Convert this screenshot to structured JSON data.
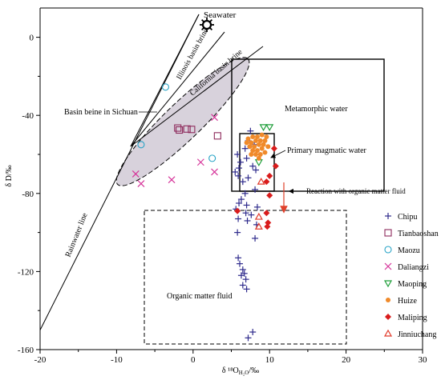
{
  "chart_data": {
    "type": "scatter",
    "xlabel": "δ ¹⁸O",
    "xlabel_sub": "H₂O",
    "xlabel_unit": "/‰",
    "ylabel": "δ D/‰",
    "xlim": [
      -20,
      30
    ],
    "ylim": [
      -160,
      15
    ],
    "x_ticks": [
      -20,
      -10,
      0,
      10,
      20,
      30
    ],
    "y_ticks": [
      0,
      -40,
      -80,
      -120,
      -160
    ],
    "grid": false,
    "legend_position": "right",
    "annotations": {
      "seawater": "Seawater",
      "basin_sichuan": "Basin beine in Sichuan",
      "illinois": "Illinois basin brine",
      "california": "California basin brine",
      "rainwater": "Rainwater line",
      "metamorphic": "Metamorphic water",
      "primary_magmatic": "Primary magmatic water",
      "reaction": "Reaction with organic matter fluid",
      "organic": "Organic matter fluid"
    },
    "series": [
      {
        "name": "Chipu",
        "marker": "plus",
        "color": "#2e2a8c",
        "points": [
          [
            7.5,
            -48
          ],
          [
            7.2,
            -53
          ],
          [
            8.0,
            -55
          ],
          [
            6.8,
            -57
          ],
          [
            5.8,
            -60
          ],
          [
            7.0,
            -62
          ],
          [
            6.2,
            -64
          ],
          [
            7.8,
            -66
          ],
          [
            6.0,
            -67
          ],
          [
            8.2,
            -68
          ],
          [
            5.5,
            -69
          ],
          [
            5.9,
            -71
          ],
          [
            7.2,
            -72
          ],
          [
            6.5,
            -74
          ],
          [
            8.1,
            -78
          ],
          [
            6.8,
            -80
          ],
          [
            6.3,
            -83
          ],
          [
            6.0,
            -85
          ],
          [
            7.0,
            -86
          ],
          [
            8.4,
            -87
          ],
          [
            5.6,
            -88
          ],
          [
            6.9,
            -90
          ],
          [
            7.6,
            -91
          ],
          [
            5.9,
            -93
          ],
          [
            7.1,
            -94
          ],
          [
            8.3,
            -96
          ],
          [
            5.8,
            -100
          ],
          [
            8.1,
            -103
          ],
          [
            5.9,
            -113
          ],
          [
            6.1,
            -116
          ],
          [
            6.5,
            -119
          ],
          [
            6.7,
            -121
          ],
          [
            6.3,
            -122
          ],
          [
            6.9,
            -124
          ],
          [
            6.5,
            -127
          ],
          [
            7.0,
            -129
          ],
          [
            7.8,
            -151
          ],
          [
            7.2,
            -154
          ]
        ]
      },
      {
        "name": "Tianbaoshan",
        "marker": "square",
        "color": "#8e2a5c",
        "points": [
          [
            -2.0,
            -46.5
          ],
          [
            -1.8,
            -47.5
          ],
          [
            -0.8,
            -47.0
          ],
          [
            -0.2,
            -47.2
          ],
          [
            3.2,
            -50.5
          ]
        ]
      },
      {
        "name": "Maozu",
        "marker": "circle",
        "color": "#27a3c6",
        "points": [
          [
            -3.6,
            -25.5
          ],
          [
            -6.8,
            -55.0
          ],
          [
            2.5,
            -62.0
          ]
        ]
      },
      {
        "name": "Daliangzi",
        "marker": "x",
        "color": "#d6359a",
        "points": [
          [
            -7.5,
            -70
          ],
          [
            -6.8,
            -75
          ],
          [
            -2.8,
            -73
          ],
          [
            2.8,
            -41
          ],
          [
            1.0,
            -64
          ],
          [
            2.8,
            -69
          ]
        ]
      },
      {
        "name": "Maoping",
        "marker": "triangle-down",
        "color": "#1f9e3a",
        "points": [
          [
            9.2,
            -46
          ],
          [
            10.0,
            -46
          ],
          [
            8.6,
            -64
          ]
        ]
      },
      {
        "name": "Huize",
        "marker": "dot",
        "color": "#f08a2a",
        "points": [
          [
            7.2,
            -52
          ],
          [
            7.8,
            -51
          ],
          [
            8.4,
            -51
          ],
          [
            9.0,
            -50
          ],
          [
            9.6,
            -51
          ],
          [
            7.0,
            -54
          ],
          [
            7.6,
            -54
          ],
          [
            8.2,
            -53
          ],
          [
            8.8,
            -53
          ],
          [
            9.4,
            -53
          ],
          [
            7.4,
            -56
          ],
          [
            8.0,
            -56
          ],
          [
            8.6,
            -55
          ],
          [
            9.2,
            -55
          ],
          [
            9.8,
            -56
          ],
          [
            7.8,
            -58
          ],
          [
            8.4,
            -58
          ],
          [
            9.0,
            -57
          ],
          [
            8.2,
            -60
          ],
          [
            8.8,
            -60
          ],
          [
            7.6,
            -60
          ],
          [
            9.4,
            -59
          ],
          [
            8.6,
            -62
          ]
        ]
      },
      {
        "name": "Maliping",
        "marker": "diamond",
        "color": "#d91c1c",
        "points": [
          [
            10.6,
            -57
          ],
          [
            10.8,
            -66
          ],
          [
            10.0,
            -71
          ],
          [
            9.6,
            -74
          ],
          [
            10.0,
            -81
          ],
          [
            5.8,
            -89
          ],
          [
            9.6,
            -90
          ],
          [
            9.8,
            -95
          ],
          [
            9.7,
            -97
          ]
        ]
      },
      {
        "name": "Jinniuchang",
        "marker": "triangle-up",
        "color": "#e23a2a",
        "points": [
          [
            8.9,
            -74
          ],
          [
            8.6,
            -92
          ],
          [
            8.6,
            -97
          ]
        ]
      }
    ]
  }
}
